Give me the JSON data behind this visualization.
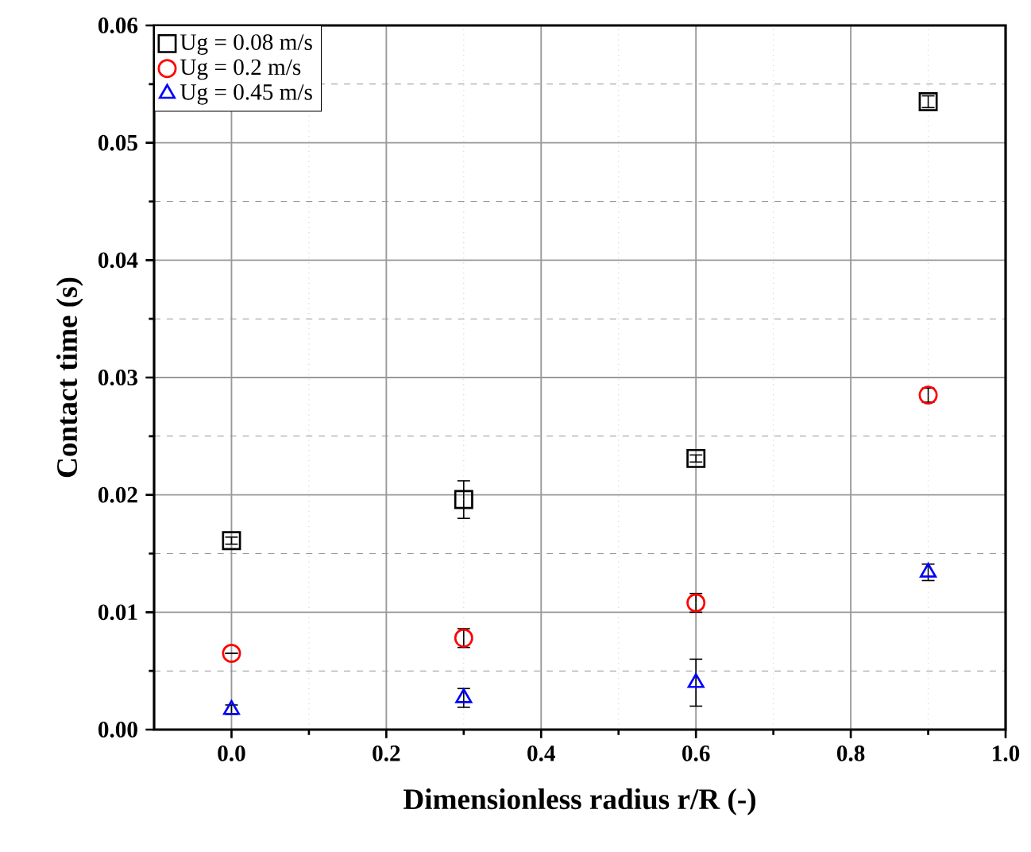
{
  "chart_data": {
    "type": "scatter",
    "xlabel": "Dimensionless radius r/R (-)",
    "ylabel": "Contact time (s)",
    "xlim": [
      -0.1,
      1.0
    ],
    "ylim": [
      0,
      0.06
    ],
    "xticks": [
      {
        "value": 0,
        "label": "0.0"
      },
      {
        "value": 0.2,
        "label": "0.2"
      },
      {
        "value": 0.4,
        "label": "0.4"
      },
      {
        "value": 0.6,
        "label": "0.6"
      },
      {
        "value": 0.8,
        "label": "0.8"
      },
      {
        "value": 1.0,
        "label": "1.0"
      }
    ],
    "yticks": [
      {
        "value": 0,
        "label": "0.00"
      },
      {
        "value": 0.01,
        "label": "0.01"
      },
      {
        "value": 0.02,
        "label": "0.02"
      },
      {
        "value": 0.03,
        "label": "0.03"
      },
      {
        "value": 0.04,
        "label": "0.04"
      },
      {
        "value": 0.05,
        "label": "0.05"
      },
      {
        "value": 0.06,
        "label": "0.06"
      }
    ],
    "grid": true,
    "legend": "top left",
    "series": [
      {
        "name": "Ug = 0.08 m/s",
        "color": "#000000",
        "marker": "square",
        "x": [
          0,
          0.3,
          0.6,
          0.9
        ],
        "values": [
          0.0161,
          0.0196,
          0.0231,
          0.0535
        ],
        "errors": [
          0.0003,
          0.0016,
          0.0003,
          0.0005
        ]
      },
      {
        "name": "Ug = 0.2 m/s",
        "color": "#ff0000",
        "marker": "circle",
        "x": [
          0,
          0.3,
          0.6,
          0.9
        ],
        "values": [
          0.0065,
          0.0078,
          0.0108,
          0.0285
        ],
        "errors": [
          null,
          0.0008,
          0.0008,
          0.0006
        ]
      },
      {
        "name": "Ug = 0.45 m/s",
        "color": "#0000ff",
        "marker": "triangle",
        "x": [
          0,
          0.3,
          0.6,
          0.9
        ],
        "values": [
          0.0017,
          0.0027,
          0.004,
          0.0134
        ],
        "errors": [
          0.0004,
          0.0008,
          0.002,
          0.0007
        ]
      }
    ]
  }
}
